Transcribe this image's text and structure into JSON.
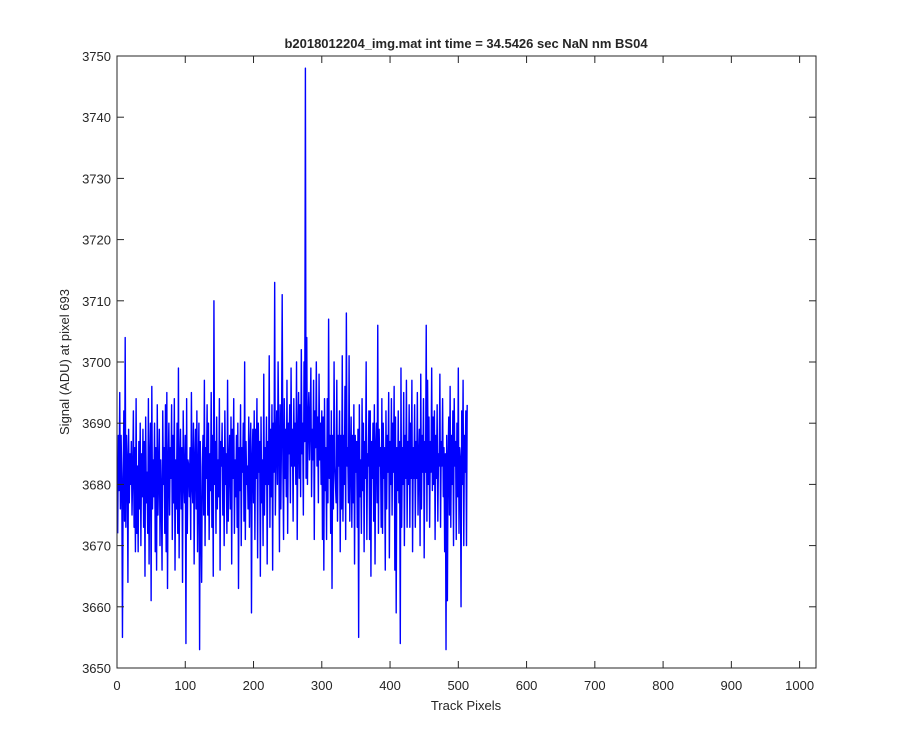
{
  "chart_data": {
    "type": "line",
    "title": "b2018012204_img.mat int time = 34.5426 sec  NaN nm BS04",
    "xlabel": "Track Pixels",
    "ylabel": "Signal (ADU) at pixel 693",
    "xlim": [
      0,
      1024
    ],
    "ylim": [
      3650,
      3750
    ],
    "xticks": [
      0,
      100,
      200,
      300,
      400,
      500,
      600,
      700,
      800,
      900,
      1000
    ],
    "yticks": [
      3650,
      3660,
      3670,
      3680,
      3690,
      3700,
      3710,
      3720,
      3730,
      3740,
      3750
    ],
    "grid": false,
    "line_color": "#0000ff",
    "series": [
      {
        "x_start": 1,
        "x_step": 1,
        "values": [
          3672,
          3688,
          3679,
          3695,
          3676,
          3688,
          3681,
          3655,
          3680,
          3692,
          3674,
          3704,
          3673,
          3688,
          3684,
          3664,
          3689,
          3677,
          3685,
          3680,
          3687,
          3675,
          3682,
          3692,
          3673,
          3686,
          3669,
          3694,
          3672,
          3683,
          3669,
          3687,
          3676,
          3690,
          3670,
          3685,
          3678,
          3689,
          3673,
          3687,
          3665,
          3691,
          3677,
          3682,
          3672,
          3694,
          3667,
          3684,
          3690,
          3661,
          3696,
          3676,
          3684,
          3678,
          3690,
          3669,
          3686,
          3666,
          3693,
          3675,
          3682,
          3689,
          3670,
          3684,
          3678,
          3666,
          3692,
          3680,
          3686,
          3672,
          3693,
          3669,
          3695,
          3663,
          3683,
          3690,
          3675,
          3686,
          3681,
          3693,
          3671,
          3688,
          3677,
          3694,
          3666,
          3684,
          3676,
          3690,
          3672,
          3699,
          3668,
          3683,
          3689,
          3676,
          3686,
          3664,
          3692,
          3681,
          3677,
          3688,
          3654,
          3694,
          3672,
          3684,
          3683,
          3678,
          3686,
          3671,
          3695,
          3680,
          3677,
          3690,
          3667,
          3684,
          3689,
          3676,
          3692,
          3669,
          3682,
          3690,
          3653,
          3687,
          3674,
          3664,
          3683,
          3688,
          3675,
          3697,
          3670,
          3686,
          3681,
          3693,
          3675,
          3690,
          3671,
          3685,
          3679,
          3695,
          3673,
          3688,
          3665,
          3710,
          3680,
          3687,
          3672,
          3691,
          3676,
          3684,
          3678,
          3694,
          3666,
          3687,
          3683,
          3690,
          3675,
          3686,
          3670,
          3692,
          3680,
          3685,
          3672,
          3697,
          3674,
          3683,
          3688,
          3676,
          3691,
          3667,
          3689,
          3681,
          3694,
          3672,
          3684,
          3678,
          3688,
          3673,
          3690,
          3663,
          3686,
          3679,
          3693,
          3670,
          3686,
          3682,
          3690,
          3674,
          3700,
          3671,
          3687,
          3680,
          3683,
          3676,
          3691,
          3673,
          3686,
          3690,
          3659,
          3684,
          3689,
          3677,
          3692,
          3671,
          3689,
          3681,
          3694,
          3668,
          3690,
          3682,
          3687,
          3665,
          3691,
          3677,
          3684,
          3670,
          3698,
          3675,
          3686,
          3680,
          3691,
          3667,
          3687,
          3680,
          3701,
          3673,
          3689,
          3678,
          3693,
          3666,
          3690,
          3682,
          3713,
          3675,
          3686,
          3692,
          3680,
          3700,
          3687,
          3669,
          3693,
          3676,
          3688,
          3711,
          3683,
          3671,
          3694,
          3681,
          3689,
          3678,
          3697,
          3672,
          3690,
          3685,
          3693,
          3677,
          3699,
          3683,
          3689,
          3674,
          3694,
          3683,
          3690,
          3680,
          3700,
          3671,
          3687,
          3695,
          3681,
          3693,
          3678,
          3702,
          3685,
          3690,
          3675,
          3700,
          3687,
          3748,
          3681,
          3704,
          3680,
          3690,
          3695,
          3684,
          3690,
          3699,
          3678,
          3689,
          3684,
          3697,
          3671,
          3692,
          3686,
          3700,
          3683,
          3691,
          3677,
          3698,
          3684,
          3690,
          3680,
          3692,
          3671,
          3691,
          3666,
          3694,
          3679,
          3686,
          3671,
          3694,
          3677,
          3707,
          3681,
          3688,
          3672,
          3692,
          3663,
          3688,
          3676,
          3700,
          3683,
          3680,
          3677,
          3697,
          3674,
          3688,
          3683,
          3692,
          3669,
          3688,
          3676,
          3701,
          3674,
          3688,
          3680,
          3696,
          3671,
          3708,
          3683,
          3686,
          3677,
          3701,
          3674,
          3684,
          3691,
          3673,
          3688,
          3677,
          3693,
          3667,
          3688,
          3682,
          3687,
          3673,
          3689,
          3655,
          3693,
          3678,
          3684,
          3672,
          3694,
          3679,
          3690,
          3669,
          3687,
          3681,
          3700,
          3671,
          3685,
          3683,
          3692,
          3671,
          3692,
          3665,
          3687,
          3681,
          3690,
          3674,
          3693,
          3667,
          3686,
          3690,
          3677,
          3706,
          3672,
          3689,
          3683,
          3686,
          3673,
          3694,
          3672,
          3690,
          3681,
          3686,
          3666,
          3692,
          3676,
          3688,
          3682,
          3695,
          3668,
          3687,
          3680,
          3694,
          3675,
          3690,
          3682,
          3696,
          3666,
          3691,
          3659,
          3686,
          3679,
          3692,
          3677,
          3687,
          3654,
          3699,
          3673,
          3686,
          3680,
          3695,
          3670,
          3688,
          3681,
          3697,
          3673,
          3687,
          3680,
          3693,
          3673,
          3690,
          3681,
          3697,
          3669,
          3686,
          3681,
          3693,
          3673,
          3687,
          3681,
          3695,
          3675,
          3684,
          3689,
          3670,
          3698,
          3676,
          3688,
          3682,
          3694,
          3668,
          3687,
          3682,
          3706,
          3674,
          3697,
          3680,
          3691,
          3673,
          3687,
          3682,
          3699,
          3679,
          3691,
          3680,
          3692,
          3671,
          3688,
          3681,
          3693,
          3674,
          3685,
          3683,
          3698,
          3673,
          3687,
          3683,
          3694,
          3678,
          3686,
          3669,
          3685,
          3653,
          3688,
          3661,
          3684,
          3691,
          3675,
          3696,
          3673,
          3688,
          3680,
          3692,
          3670,
          3694,
          3683,
          3687,
          3671,
          3690,
          3678,
          3699,
          3672,
          3686,
          3684,
          3660,
          3692,
          3680,
          3697,
          3670,
          3688,
          3682,
          3692,
          3670,
          3693
        ]
      }
    ]
  }
}
